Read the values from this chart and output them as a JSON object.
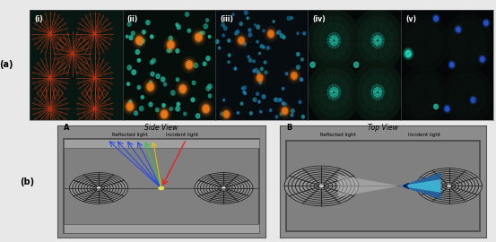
{
  "fig_width": 5.53,
  "fig_height": 2.7,
  "dpi": 100,
  "bg_color": "#e8e8e8",
  "panel_a_label": "(a)",
  "panel_b_label": "(b)",
  "subpanel_labels": [
    "(i)",
    "(ii)",
    "(iii)",
    "(iv)",
    "(v)"
  ],
  "subpanel_label_color": "#ffffff",
  "subpanel_label_fontsize": 5.5,
  "panel_i_bg": "#0a1410",
  "panel_ii_bg": "#060e0c",
  "panel_iii_bg": "#060c10",
  "panel_iv_bg": "#050808",
  "panel_v_bg": "#050608",
  "bottom_bg": "#8c8c8c",
  "side_view_title": "Side View",
  "top_view_title": "Top View",
  "side_view_label": "A",
  "top_view_label": "B",
  "reflected_light": "Reflected light",
  "incident_light": "Incident light",
  "blue_cone_color": "#1e5fa0",
  "light_blue_cone": "#40b8d8"
}
